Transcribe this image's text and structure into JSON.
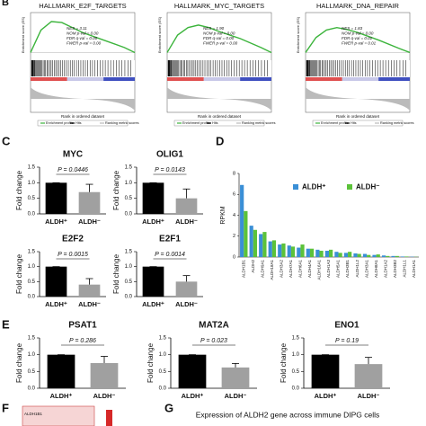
{
  "panel_labels": [
    "B",
    "C",
    "D",
    "E",
    "F",
    "G"
  ],
  "panel_f": {
    "row_label": "ALDH1B1"
  },
  "panel_g": {
    "title": "Expression of ALDH2 gene across immune DIPG cells"
  },
  "chart_data": [
    {
      "type": "gsea",
      "title": "HALLMARK_E2F_TARGETS",
      "stats": [
        "NES = 3.11",
        "NOM p-val = 0.00",
        "FDR q-val = 0.00",
        "FWER p-val = 0.00"
      ],
      "ylabel": "Enrichment score (ES)",
      "xlabel": "Rank in ordered dataset",
      "legend": [
        "Enrichment profile",
        "Hits",
        "Ranking metric scores"
      ],
      "x": [
        0,
        2000,
        4000,
        6000,
        8000,
        10000,
        14000,
        18000,
        20000
      ],
      "values": [
        0,
        0.45,
        0.62,
        0.6,
        0.5,
        0.4,
        0.25,
        0.1,
        0
      ],
      "xlim": [
        0,
        20000
      ],
      "ylim": [
        -0.1,
        0.8
      ],
      "color": "#3cb43c"
    },
    {
      "type": "gsea",
      "title": "HALLMARK_MYC_TARGETS",
      "stats": [
        "NES = 1.90",
        "NOM p-val = 0.00",
        "FDR q-val = 0.00",
        "FWER p-val = 0.00"
      ],
      "ylabel": "Enrichment score (ES)",
      "xlabel": "Rank in ordered dataset",
      "legend": [
        "Enrichment profile",
        "Hits",
        "Ranking metric scores"
      ],
      "x": [
        0,
        2000,
        4000,
        6000,
        8000,
        10000,
        14000,
        18000,
        20000
      ],
      "values": [
        0,
        0.35,
        0.5,
        0.55,
        0.5,
        0.42,
        0.28,
        0.1,
        0
      ],
      "xlim": [
        0,
        20000
      ],
      "ylim": [
        -0.1,
        0.8
      ],
      "color": "#3cb43c"
    },
    {
      "type": "gsea",
      "title": "HALLMARK_DNA_REPAIR",
      "stats": [
        "NES = 1.83",
        "NOM p-val = 0.00",
        "FDR q-val = 0.01",
        "FWER p-val = 0.01"
      ],
      "ylabel": "Enrichment score (ES)",
      "xlabel": "Rank in ordered dataset",
      "legend": [
        "Enrichment profile",
        "Hits",
        "Ranking metric scores"
      ],
      "x": [
        0,
        2000,
        4000,
        6000,
        8000,
        10000,
        14000,
        18000,
        20000
      ],
      "values": [
        0,
        0.3,
        0.45,
        0.5,
        0.46,
        0.4,
        0.25,
        0.08,
        0
      ],
      "xlim": [
        0,
        20000
      ],
      "ylim": [
        -0.1,
        0.8
      ],
      "color": "#3cb43c"
    },
    {
      "type": "bar",
      "title": "MYC",
      "ylabel": "Fold change",
      "categories": [
        "ALDH⁺",
        "ALDH⁻"
      ],
      "values": [
        1.0,
        0.7
      ],
      "errors": [
        0,
        0.25
      ],
      "colors": [
        "#000000",
        "#a0a0a0"
      ],
      "annotation": "P = 0.0446",
      "ylim": [
        0,
        1.5
      ],
      "yticks": [
        {
          "value": 0,
          "label": "0.0"
        },
        0.5,
        {
          "value": 1,
          "label": "1.0"
        },
        1.5
      ]
    },
    {
      "type": "bar",
      "title": "OLIG1",
      "ylabel": "Fold change",
      "categories": [
        "ALDH⁺",
        "ALDH⁻"
      ],
      "values": [
        1.0,
        0.5
      ],
      "errors": [
        0,
        0.3
      ],
      "colors": [
        "#000000",
        "#a0a0a0"
      ],
      "annotation": "P = 0.0143",
      "ylim": [
        0,
        1.5
      ],
      "yticks": [
        {
          "value": 0,
          "label": "0.0"
        },
        0.5,
        {
          "value": 1,
          "label": "1.0"
        },
        1.5
      ]
    },
    {
      "type": "bar",
      "title": "E2F2",
      "ylabel": "Fold change",
      "categories": [
        "ALDH⁺",
        "ALDH⁻"
      ],
      "values": [
        1.0,
        0.4
      ],
      "errors": [
        0,
        0.2
      ],
      "colors": [
        "#000000",
        "#a0a0a0"
      ],
      "annotation": "P = 0.0015",
      "ylim": [
        0,
        1.5
      ],
      "yticks": [
        {
          "value": 0,
          "label": "0.0"
        },
        0.5,
        {
          "value": 1,
          "label": "1.0"
        },
        1.5
      ]
    },
    {
      "type": "bar",
      "title": "E2F1",
      "ylabel": "Fold change",
      "categories": [
        "ALDH⁺",
        "ALDH⁻"
      ],
      "values": [
        1.0,
        0.5
      ],
      "errors": [
        0,
        0.2
      ],
      "colors": [
        "#000000",
        "#a0a0a0"
      ],
      "annotation": "P = 0.0014",
      "ylim": [
        0,
        1.5
      ],
      "yticks": [
        {
          "value": 0,
          "label": "0.0"
        },
        0.5,
        {
          "value": 1,
          "label": "1.0"
        },
        1.5
      ]
    },
    {
      "type": "grouped_bar",
      "ylabel": "RPKM",
      "categories": [
        "ALDH1B1",
        "ALDH2",
        "ALDH9A1",
        "ALDH18A1",
        "ALDH3A2",
        "ALDH7A1",
        "ALDH6A1",
        "ALDH4A1",
        "ALDH16A1",
        "ALDH1A3",
        "ALDH5A1",
        "ALDH3B1",
        "ALDH1L2",
        "ALDH3A1",
        "ALDH8A1",
        "ALDH1A2",
        "ALDH3B2",
        "ALDH1L1",
        "ALDH1A1"
      ],
      "series": [
        {
          "name": "ALDH⁺",
          "color": "#3a8fd6",
          "values": [
            6.9,
            3.0,
            2.2,
            1.5,
            1.2,
            1.1,
            0.9,
            0.8,
            0.7,
            0.6,
            0.5,
            0.4,
            0.35,
            0.3,
            0.2,
            0.15,
            0.1,
            0.05,
            0.03
          ]
        },
        {
          "name": "ALDH⁻",
          "color": "#5cc23a",
          "values": [
            4.4,
            2.6,
            2.4,
            1.6,
            1.3,
            1.0,
            1.2,
            0.8,
            0.6,
            0.7,
            0.4,
            0.5,
            0.3,
            0.2,
            0.25,
            0.1,
            0.1,
            0.05,
            0.02
          ]
        }
      ],
      "ylim": [
        0,
        8
      ],
      "yticks": [
        0,
        2,
        4,
        6,
        8
      ]
    },
    {
      "type": "bar",
      "title": "PSAT1",
      "ylabel": "Fold change",
      "categories": [
        "ALDH⁺",
        "ALDH⁻"
      ],
      "values": [
        1.0,
        0.75
      ],
      "errors": [
        0,
        0.2
      ],
      "colors": [
        "#000000",
        "#a0a0a0"
      ],
      "annotation": "P = 0.286",
      "ylim": [
        0,
        1.5
      ],
      "yticks": [
        {
          "value": 0,
          "label": "0.0"
        },
        0.5,
        {
          "value": 1,
          "label": "1.0"
        },
        1.5
      ]
    },
    {
      "type": "bar",
      "title": "MAT2A",
      "ylabel": "Fold change",
      "categories": [
        "ALDH⁺",
        "ALDH⁻"
      ],
      "values": [
        1.0,
        0.62
      ],
      "errors": [
        0,
        0.12
      ],
      "colors": [
        "#000000",
        "#a0a0a0"
      ],
      "annotation": "P = 0.023",
      "ylim": [
        0,
        1.5
      ],
      "yticks": [
        {
          "value": 0,
          "label": "0.0"
        },
        0.5,
        {
          "value": 1,
          "label": "1.0"
        },
        1.5
      ]
    },
    {
      "type": "bar",
      "title": "ENO1",
      "ylabel": "Fold change",
      "categories": [
        "ALDH⁺",
        "ALDH⁻"
      ],
      "values": [
        1.0,
        0.72
      ],
      "errors": [
        0,
        0.2
      ],
      "colors": [
        "#000000",
        "#a0a0a0"
      ],
      "annotation": "P = 0.19",
      "ylim": [
        0,
        1.5
      ],
      "yticks": [
        {
          "value": 0,
          "label": "0.0"
        },
        0.5,
        {
          "value": 1,
          "label": "1.0"
        },
        1.5
      ]
    }
  ]
}
